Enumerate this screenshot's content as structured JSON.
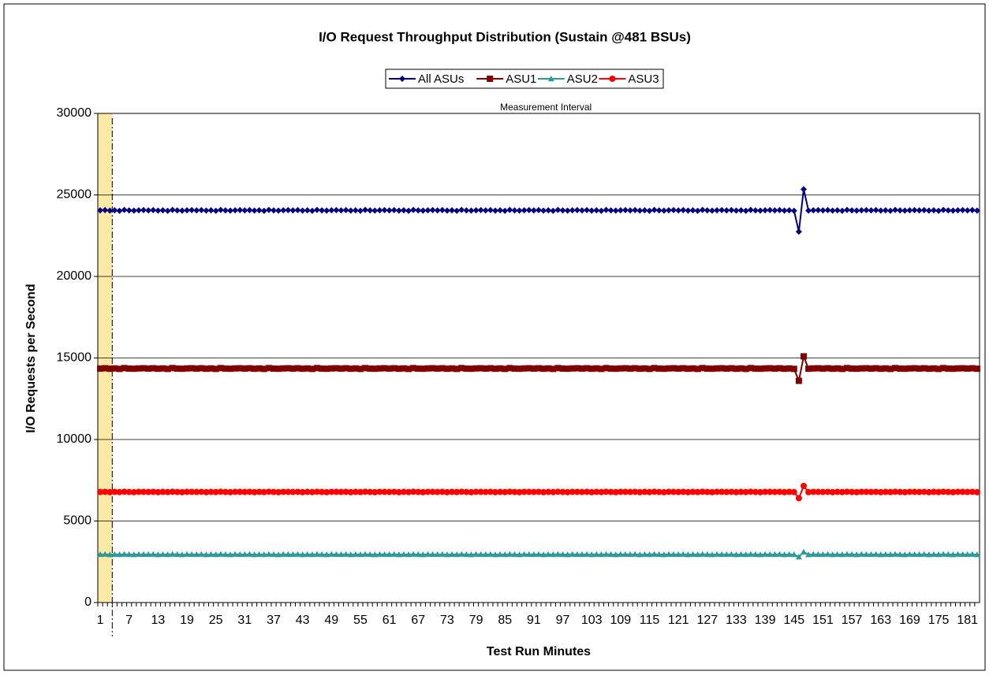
{
  "chart_data": {
    "type": "line",
    "title": "I/O Request Throughput Distribution (Sustain @481 BSUs)",
    "x_label": "Test Run Minutes",
    "y_label": "I/O Requests per Second",
    "annotation": {
      "text": "Measurement Interval",
      "start": 4
    },
    "legend": "top",
    "grid": true,
    "ylim": [
      0,
      30000
    ],
    "yticks": [
      0,
      5000,
      10000,
      15000,
      20000,
      25000,
      30000
    ],
    "categories": [
      1,
      null,
      null,
      null,
      null,
      null,
      7,
      null,
      null,
      null,
      null,
      null,
      13,
      null,
      null,
      null,
      null,
      null,
      19,
      null,
      null,
      null,
      null,
      null,
      25,
      null,
      null,
      null,
      null,
      null,
      31,
      null,
      null,
      null,
      null,
      null,
      37,
      null,
      null,
      null,
      null,
      null,
      43,
      null,
      null,
      null,
      null,
      null,
      49,
      null,
      null,
      null,
      null,
      null,
      55,
      null,
      null,
      null,
      null,
      null,
      61,
      null,
      null,
      null,
      null,
      null,
      67,
      null,
      null,
      null,
      null,
      null,
      73,
      null,
      null,
      null,
      null,
      null,
      79,
      null,
      null,
      null,
      null,
      null,
      85,
      null,
      null,
      null,
      null,
      null,
      91,
      null,
      null,
      null,
      null,
      null,
      97,
      null,
      null,
      null,
      null,
      null,
      103,
      null,
      null,
      null,
      null,
      null,
      109,
      null,
      null,
      null,
      null,
      null,
      115,
      null,
      null,
      null,
      null,
      null,
      121,
      null,
      null,
      null,
      null,
      null,
      127,
      null,
      null,
      null,
      null,
      null,
      133,
      null,
      null,
      null,
      null,
      null,
      139,
      null,
      null,
      null,
      null,
      null,
      145,
      null,
      null,
      null,
      null,
      null,
      151,
      null,
      null,
      null,
      null,
      null,
      157,
      null,
      null,
      null,
      null,
      null,
      163,
      null,
      null,
      null,
      null,
      null,
      169,
      null,
      null,
      null,
      null,
      null,
      175,
      null,
      null,
      null,
      null,
      null,
      181,
      null,
      null
    ],
    "series": [
      {
        "name": "All ASUs",
        "color": "#000080",
        "marker": "diamond",
        "values": [
          24050,
          24070,
          24040,
          24060,
          24030,
          24080,
          24050,
          24040,
          24060,
          24070,
          24050,
          24070,
          24040,
          24060,
          24030,
          24080,
          24050,
          24040,
          24060,
          24070,
          24050,
          24070,
          24040,
          24060,
          24030,
          24080,
          24050,
          24040,
          24060,
          24070,
          24050,
          24070,
          24040,
          24060,
          24030,
          24080,
          24050,
          24040,
          24060,
          24070,
          24050,
          24070,
          24040,
          24060,
          24030,
          24080,
          24050,
          24040,
          24060,
          24070,
          24050,
          24070,
          24040,
          24060,
          24030,
          24080,
          24050,
          24040,
          24060,
          24070,
          24050,
          24070,
          24040,
          24060,
          24030,
          24080,
          24050,
          24040,
          24060,
          24070,
          24050,
          24070,
          24040,
          24060,
          24030,
          24080,
          24050,
          24040,
          24060,
          24070,
          24050,
          24070,
          24040,
          24060,
          24030,
          24080,
          24050,
          24040,
          24060,
          24070,
          24050,
          24070,
          24040,
          24060,
          24030,
          24080,
          24050,
          24040,
          24060,
          24070,
          24050,
          24070,
          24040,
          24060,
          24030,
          24080,
          24050,
          24040,
          24060,
          24070,
          24050,
          24070,
          24040,
          24060,
          24030,
          24080,
          24050,
          24040,
          24060,
          24070,
          24050,
          24070,
          24040,
          24060,
          24030,
          24080,
          24050,
          24040,
          24060,
          24070,
          24050,
          24070,
          24040,
          24060,
          24030,
          24080,
          24050,
          24040,
          24060,
          24070,
          24050,
          24070,
          24040,
          24060,
          24030,
          22750,
          25350,
          24040,
          24060,
          24070,
          24050,
          24070,
          24040,
          24060,
          24030,
          24080,
          24050,
          24040,
          24060,
          24070,
          24050,
          24070,
          24040,
          24060,
          24030,
          24080,
          24050,
          24040,
          24060,
          24070,
          24050,
          24070,
          24040,
          24060,
          24030,
          24080,
          24050,
          24040,
          24060,
          24070,
          24050,
          24070,
          24040
        ]
      },
      {
        "name": "ASU1",
        "color": "#800000",
        "marker": "square",
        "values": [
          14350,
          14370,
          14340,
          14360,
          14330,
          14380,
          14350,
          14340,
          14360,
          14370,
          14350,
          14370,
          14340,
          14360,
          14330,
          14380,
          14350,
          14340,
          14360,
          14370,
          14350,
          14370,
          14340,
          14360,
          14330,
          14380,
          14350,
          14340,
          14360,
          14370,
          14350,
          14370,
          14340,
          14360,
          14330,
          14380,
          14350,
          14340,
          14360,
          14370,
          14350,
          14370,
          14340,
          14360,
          14330,
          14380,
          14350,
          14340,
          14360,
          14370,
          14350,
          14370,
          14340,
          14360,
          14330,
          14380,
          14350,
          14340,
          14360,
          14370,
          14350,
          14370,
          14340,
          14360,
          14330,
          14380,
          14350,
          14340,
          14360,
          14370,
          14350,
          14370,
          14340,
          14360,
          14330,
          14380,
          14350,
          14340,
          14360,
          14370,
          14350,
          14370,
          14340,
          14360,
          14330,
          14380,
          14350,
          14340,
          14360,
          14370,
          14350,
          14370,
          14340,
          14360,
          14330,
          14380,
          14350,
          14340,
          14360,
          14370,
          14350,
          14370,
          14340,
          14360,
          14330,
          14380,
          14350,
          14340,
          14360,
          14370,
          14350,
          14370,
          14340,
          14360,
          14330,
          14380,
          14350,
          14340,
          14360,
          14370,
          14350,
          14370,
          14340,
          14360,
          14330,
          14380,
          14350,
          14340,
          14360,
          14370,
          14350,
          14370,
          14340,
          14360,
          14330,
          14380,
          14350,
          14340,
          14360,
          14370,
          14350,
          14370,
          14340,
          14360,
          14330,
          13600,
          15100,
          14340,
          14360,
          14370,
          14350,
          14370,
          14340,
          14360,
          14330,
          14380,
          14350,
          14340,
          14360,
          14370,
          14350,
          14370,
          14340,
          14360,
          14330,
          14380,
          14350,
          14340,
          14360,
          14370,
          14350,
          14370,
          14340,
          14360,
          14330,
          14380,
          14350,
          14340,
          14360,
          14370,
          14350,
          14370,
          14340
        ]
      },
      {
        "name": "ASU2",
        "color": "#2e9a96",
        "marker": "triangle",
        "values": [
          2950,
          2960,
          2940,
          2955,
          2945,
          2965,
          2950,
          2940,
          2960,
          2955,
          2950,
          2960,
          2940,
          2955,
          2945,
          2965,
          2950,
          2940,
          2960,
          2955,
          2950,
          2960,
          2940,
          2955,
          2945,
          2965,
          2950,
          2940,
          2960,
          2955,
          2950,
          2960,
          2940,
          2955,
          2945,
          2965,
          2950,
          2940,
          2960,
          2955,
          2950,
          2960,
          2940,
          2955,
          2945,
          2965,
          2950,
          2940,
          2960,
          2955,
          2950,
          2960,
          2940,
          2955,
          2945,
          2965,
          2950,
          2940,
          2960,
          2955,
          2950,
          2960,
          2940,
          2955,
          2945,
          2965,
          2950,
          2940,
          2960,
          2955,
          2950,
          2960,
          2940,
          2955,
          2945,
          2965,
          2950,
          2940,
          2960,
          2955,
          2950,
          2960,
          2940,
          2955,
          2945,
          2965,
          2950,
          2940,
          2960,
          2955,
          2950,
          2960,
          2940,
          2955,
          2945,
          2965,
          2950,
          2940,
          2960,
          2955,
          2950,
          2960,
          2940,
          2955,
          2945,
          2965,
          2950,
          2940,
          2960,
          2955,
          2950,
          2960,
          2940,
          2955,
          2945,
          2965,
          2950,
          2940,
          2960,
          2955,
          2950,
          2960,
          2940,
          2955,
          2945,
          2965,
          2950,
          2940,
          2960,
          2955,
          2950,
          2960,
          2940,
          2955,
          2945,
          2965,
          2950,
          2940,
          2960,
          2955,
          2950,
          2960,
          2940,
          2955,
          2945,
          2800,
          3100,
          2940,
          2960,
          2955,
          2950,
          2960,
          2940,
          2955,
          2945,
          2965,
          2950,
          2940,
          2960,
          2955,
          2950,
          2960,
          2940,
          2955,
          2945,
          2965,
          2950,
          2940,
          2960,
          2955,
          2950,
          2960,
          2940,
          2955,
          2945,
          2965,
          2950,
          2940,
          2960,
          2955,
          2950,
          2960,
          2940
        ]
      },
      {
        "name": "ASU3",
        "color": "#ff0000",
        "marker": "circle",
        "values": [
          6780,
          6790,
          6770,
          6785,
          6775,
          6795,
          6780,
          6770,
          6790,
          6785,
          6780,
          6790,
          6770,
          6785,
          6775,
          6795,
          6780,
          6770,
          6790,
          6785,
          6780,
          6790,
          6770,
          6785,
          6775,
          6795,
          6780,
          6770,
          6790,
          6785,
          6780,
          6790,
          6770,
          6785,
          6775,
          6795,
          6780,
          6770,
          6790,
          6785,
          6780,
          6790,
          6770,
          6785,
          6775,
          6795,
          6780,
          6770,
          6790,
          6785,
          6780,
          6790,
          6770,
          6785,
          6775,
          6795,
          6780,
          6770,
          6790,
          6785,
          6780,
          6790,
          6770,
          6785,
          6775,
          6795,
          6780,
          6770,
          6790,
          6785,
          6780,
          6790,
          6770,
          6785,
          6775,
          6795,
          6780,
          6770,
          6790,
          6785,
          6780,
          6790,
          6770,
          6785,
          6775,
          6795,
          6780,
          6770,
          6790,
          6785,
          6780,
          6790,
          6770,
          6785,
          6775,
          6795,
          6780,
          6770,
          6790,
          6785,
          6780,
          6790,
          6770,
          6785,
          6775,
          6795,
          6780,
          6770,
          6790,
          6785,
          6780,
          6790,
          6770,
          6785,
          6775,
          6795,
          6780,
          6770,
          6790,
          6785,
          6780,
          6790,
          6770,
          6785,
          6775,
          6795,
          6780,
          6770,
          6790,
          6785,
          6780,
          6790,
          6770,
          6785,
          6775,
          6795,
          6780,
          6770,
          6790,
          6785,
          6780,
          6790,
          6770,
          6785,
          6775,
          6400,
          7150,
          6770,
          6790,
          6785,
          6780,
          6790,
          6770,
          6785,
          6775,
          6795,
          6780,
          6770,
          6790,
          6785,
          6780,
          6790,
          6770,
          6785,
          6775,
          6795,
          6780,
          6770,
          6790,
          6785,
          6780,
          6790,
          6770,
          6785,
          6775,
          6795,
          6780,
          6770,
          6790,
          6785,
          6780,
          6790,
          6770
        ]
      }
    ]
  }
}
